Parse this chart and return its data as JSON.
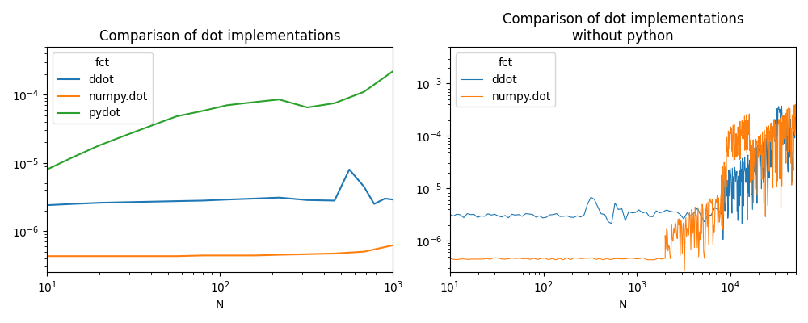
{
  "title1": "Comparison of dot implementations",
  "title2": "Comparison of dot implementations\nwithout python",
  "xlabel": "N",
  "legend_title": "fct",
  "color_blue": "#1f77b4",
  "color_orange": "#ff7f0e",
  "color_green": "#2ca02c",
  "plot1": {
    "ddot_x": [
      10,
      14,
      20,
      28,
      40,
      56,
      80,
      110,
      160,
      220,
      320,
      460,
      560,
      680,
      780,
      900,
      1000
    ],
    "ddot_y": [
      2.4e-06,
      2.5e-06,
      2.6e-06,
      2.65e-06,
      2.7e-06,
      2.75e-06,
      2.8e-06,
      2.9e-06,
      3e-06,
      3.1e-06,
      2.85e-06,
      2.8e-06,
      8e-06,
      4.5e-06,
      2.5e-06,
      3e-06,
      2.9e-06
    ],
    "numpy_x": [
      10,
      14,
      20,
      28,
      40,
      56,
      80,
      110,
      160,
      220,
      320,
      460,
      680,
      1000
    ],
    "numpy_y": [
      4.3e-07,
      4.3e-07,
      4.3e-07,
      4.3e-07,
      4.3e-07,
      4.3e-07,
      4.4e-07,
      4.4e-07,
      4.4e-07,
      4.5e-07,
      4.6e-07,
      4.7e-07,
      5e-07,
      6.2e-07
    ],
    "pydot_x": [
      10,
      14,
      20,
      28,
      40,
      56,
      80,
      110,
      160,
      220,
      320,
      460,
      680,
      1000
    ],
    "pydot_y": [
      8e-06,
      1.2e-05,
      1.8e-05,
      2.5e-05,
      3.5e-05,
      4.8e-05,
      5.8e-05,
      7e-05,
      7.8e-05,
      8.5e-05,
      6.5e-05,
      7.5e-05,
      0.00011,
      0.00022
    ],
    "xlim": [
      10,
      1000
    ],
    "ylim": [
      2.5e-07,
      0.0005
    ]
  },
  "plot2": {
    "xlim": [
      10,
      50000
    ],
    "ylim": [
      2.5e-07,
      0.005
    ]
  }
}
